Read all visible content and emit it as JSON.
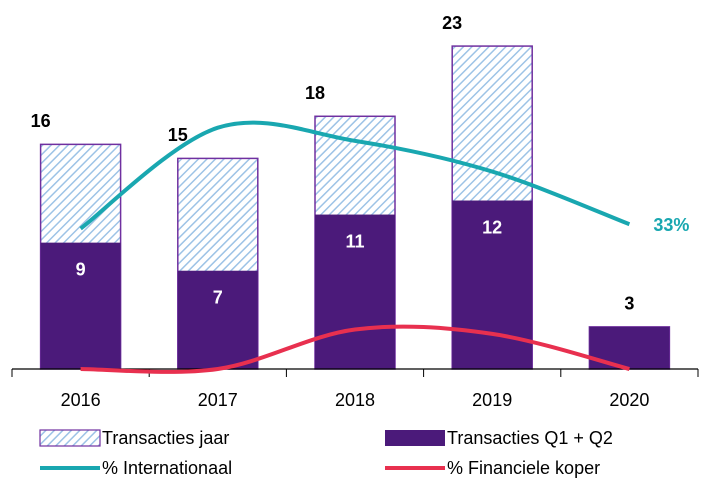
{
  "chart_data": {
    "type": "bar_line",
    "categories": [
      "2016",
      "2017",
      "2018",
      "2019",
      "2020"
    ],
    "ylim": [
      0,
      25
    ],
    "y2lim": [
      0,
      80
    ],
    "series": [
      {
        "name": "Transacties jaar",
        "type": "bar",
        "color": "#9dc3e6",
        "border": "#7030a0",
        "pattern": "hatch",
        "values": [
          16,
          15,
          18,
          23,
          3
        ]
      },
      {
        "name": "Transacties Q1 + Q2",
        "type": "bar",
        "color": "#4b1a7a",
        "values": [
          9,
          7,
          11,
          12,
          3
        ]
      },
      {
        "name": "% Internationaal",
        "type": "line",
        "axis": "y2",
        "color": "#19a7b0",
        "values": [
          32,
          55,
          52,
          45,
          33
        ],
        "value_labels": [
          null,
          null,
          null,
          null,
          "33%"
        ]
      },
      {
        "name": "% Financiele koper",
        "type": "line",
        "axis": "y2",
        "color": "#e8304f",
        "values": [
          0,
          0,
          9,
          8,
          0
        ]
      }
    ]
  }
}
